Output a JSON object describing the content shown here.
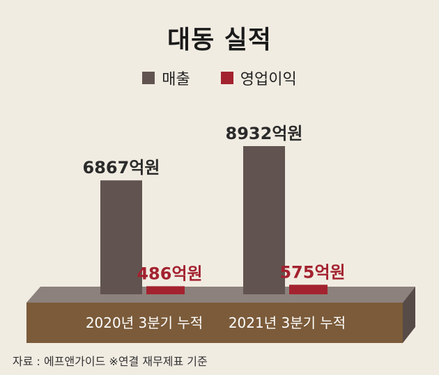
{
  "title": "대동 실적",
  "legend": [
    {
      "label": "매출",
      "color": "#615450"
    },
    {
      "label": "영업이익",
      "color": "#a3222f"
    }
  ],
  "source": "자료 : 에프앤가이드 ※연결 재무제표 기준",
  "chart_data": {
    "type": "bar",
    "title": "대동 실적",
    "categories": [
      "2020년 3분기 누적",
      "2021년 3분기 누적"
    ],
    "unit": "억원",
    "series": [
      {
        "name": "매출",
        "color": "#615450",
        "values": [
          6867,
          8932
        ],
        "labels": [
          "6867억원",
          "8932억원"
        ]
      },
      {
        "name": "영업이익",
        "color": "#a3222f",
        "values": [
          486,
          575
        ],
        "labels": [
          "486억원",
          "575억원"
        ]
      }
    ]
  }
}
